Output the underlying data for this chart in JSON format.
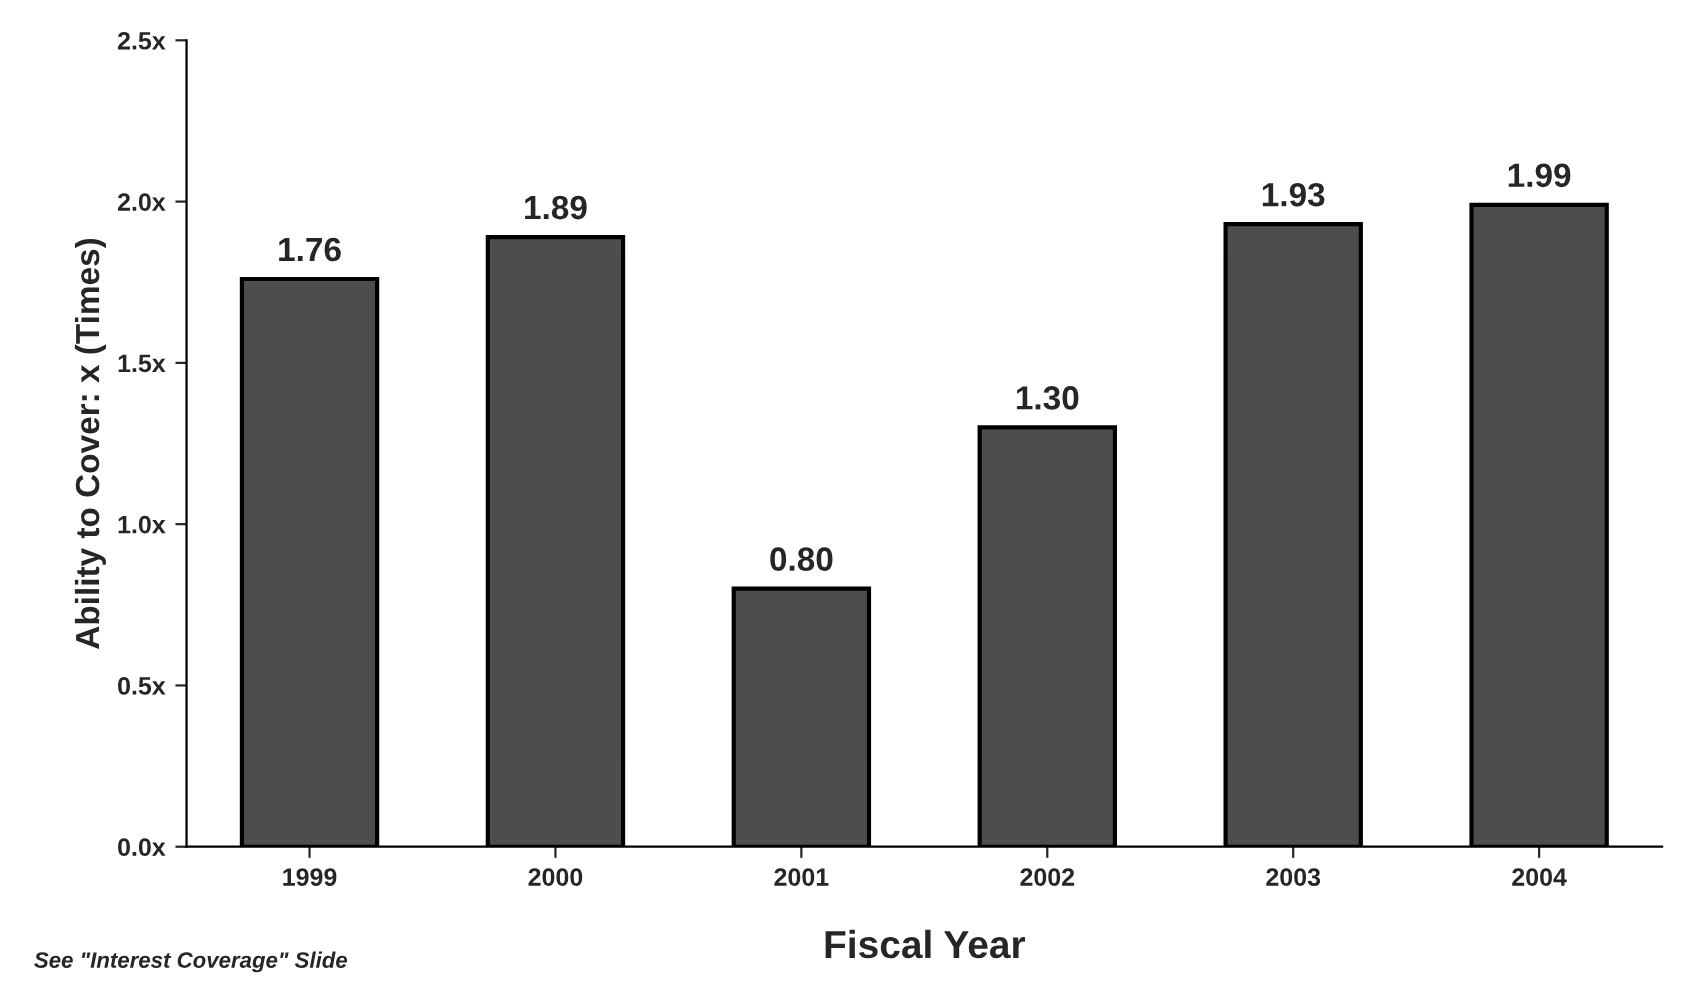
{
  "chart_data": {
    "type": "bar",
    "xlabel": "Fiscal Year",
    "ylabel": "Ability to Cover: x (Times)",
    "categories": [
      "1999",
      "2000",
      "2001",
      "2002",
      "2003",
      "2004"
    ],
    "values": [
      1.76,
      1.89,
      0.8,
      1.3,
      1.93,
      1.99
    ],
    "value_labels": [
      "1.76",
      "1.89",
      "0.80",
      "1.30",
      "1.93",
      "1.99"
    ],
    "color": "#4d4d4d",
    "ylim": [
      0,
      2.5
    ],
    "yticks": [
      {
        "value": 0,
        "label": "0.0x"
      },
      {
        "value": 0.5,
        "label": "0.5x"
      },
      {
        "value": 1.0,
        "label": "1.0x"
      },
      {
        "value": 1.5,
        "label": "1.5x"
      },
      {
        "value": 2.0,
        "label": "2.0x"
      },
      {
        "value": 2.5,
        "label": "2.5x"
      }
    ],
    "grid": false,
    "annotations": [
      "See \"Interest Coverage\" Slide"
    ]
  }
}
